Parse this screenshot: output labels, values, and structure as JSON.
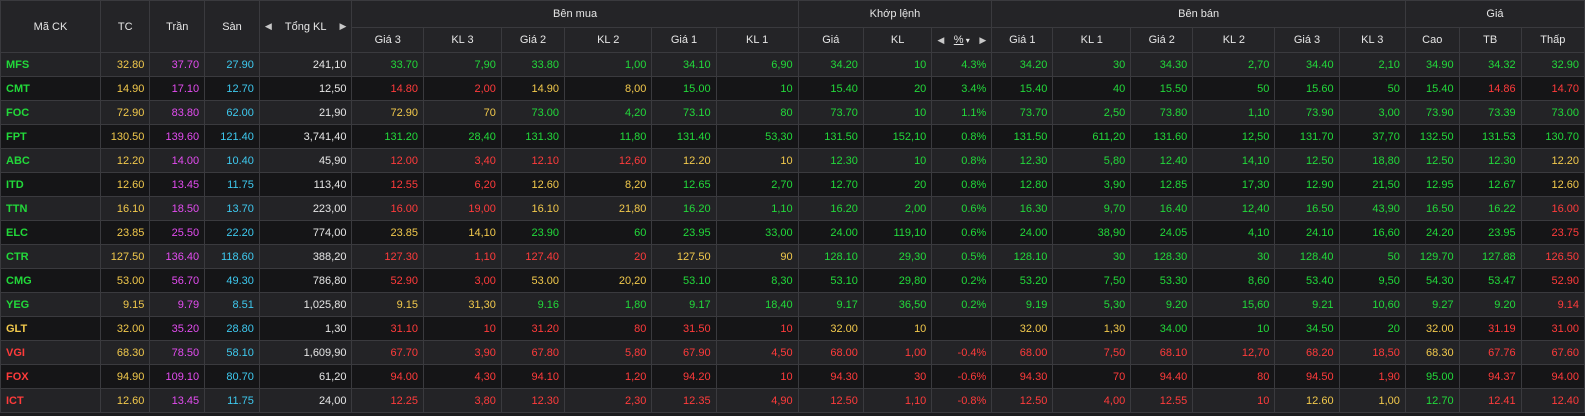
{
  "colors": {
    "up": "#22d93a",
    "down": "#ff3b3b",
    "ref": "#f2c94c",
    "ceil": "#e34cf0",
    "floor": "#3ec9ef",
    "white": "#e6e6e6"
  },
  "header": {
    "symbol": "Mã CK",
    "ref": "TC",
    "ceil": "Trần",
    "floor": "Sàn",
    "total_vol": "Tổng KL",
    "buy": "Bên mua",
    "match": "Khớp lệnh",
    "sell": "Bên bán",
    "price": "Giá",
    "buy_cols": [
      "Giá 3",
      "KL 3",
      "Giá 2",
      "KL 2",
      "Giá 1",
      "KL 1"
    ],
    "match_cols": [
      "Giá",
      "KL",
      "%"
    ],
    "sell_cols": [
      "Giá 1",
      "KL 1",
      "Giá 2",
      "KL 2",
      "Giá 3",
      "KL 3"
    ],
    "price_cols": [
      "Cao",
      "TB",
      "Thấp"
    ]
  },
  "rows": [
    {
      "symbol": "MFS",
      "sc": "up",
      "tc": "32.80",
      "tran": "37.70",
      "san": "27.90",
      "tkl": "241,10",
      "buy": [
        [
          "33.70",
          "up"
        ],
        [
          "7,90",
          "up"
        ],
        [
          "33.80",
          "up"
        ],
        [
          "1,00",
          "up"
        ],
        [
          "34.10",
          "up"
        ],
        [
          "6,90",
          "up"
        ]
      ],
      "match": [
        [
          "34.20",
          "up"
        ],
        [
          "10",
          "up"
        ],
        [
          "4.3%",
          "up"
        ]
      ],
      "sell": [
        [
          "34.20",
          "up"
        ],
        [
          "30",
          "up"
        ],
        [
          "34.30",
          "up"
        ],
        [
          "2,70",
          "up"
        ],
        [
          "34.40",
          "up"
        ],
        [
          "2,10",
          "up"
        ]
      ],
      "price": [
        [
          "34.90",
          "up"
        ],
        [
          "34.32",
          "up"
        ],
        [
          "32.90",
          "up"
        ]
      ]
    },
    {
      "symbol": "CMT",
      "sc": "up",
      "tc": "14.90",
      "tran": "17.10",
      "san": "12.70",
      "tkl": "12,50",
      "buy": [
        [
          "14.80",
          "down"
        ],
        [
          "2,00",
          "down"
        ],
        [
          "14.90",
          "ref"
        ],
        [
          "8,00",
          "ref"
        ],
        [
          "15.00",
          "up"
        ],
        [
          "10",
          "up"
        ]
      ],
      "match": [
        [
          "15.40",
          "up"
        ],
        [
          "20",
          "up"
        ],
        [
          "3.4%",
          "up"
        ]
      ],
      "sell": [
        [
          "15.40",
          "up"
        ],
        [
          "40",
          "up"
        ],
        [
          "15.50",
          "up"
        ],
        [
          "50",
          "up"
        ],
        [
          "15.60",
          "up"
        ],
        [
          "50",
          "up"
        ]
      ],
      "price": [
        [
          "15.40",
          "up"
        ],
        [
          "14.86",
          "down"
        ],
        [
          "14.70",
          "down"
        ]
      ]
    },
    {
      "symbol": "FOC",
      "sc": "up",
      "tc": "72.90",
      "tran": "83.80",
      "san": "62.00",
      "tkl": "21,90",
      "buy": [
        [
          "72.90",
          "ref"
        ],
        [
          "70",
          "ref"
        ],
        [
          "73.00",
          "up"
        ],
        [
          "4,20",
          "up"
        ],
        [
          "73.10",
          "up"
        ],
        [
          "80",
          "up"
        ]
      ],
      "match": [
        [
          "73.70",
          "up"
        ],
        [
          "10",
          "up"
        ],
        [
          "1.1%",
          "up"
        ]
      ],
      "sell": [
        [
          "73.70",
          "up"
        ],
        [
          "2,50",
          "up"
        ],
        [
          "73.80",
          "up"
        ],
        [
          "1,10",
          "up"
        ],
        [
          "73.90",
          "up"
        ],
        [
          "3,00",
          "up"
        ]
      ],
      "price": [
        [
          "73.90",
          "up"
        ],
        [
          "73.39",
          "up"
        ],
        [
          "73.00",
          "up"
        ]
      ]
    },
    {
      "symbol": "FPT",
      "sc": "up",
      "tc": "130.50",
      "tran": "139.60",
      "san": "121.40",
      "tkl": "3,741,40",
      "buy": [
        [
          "131.20",
          "up"
        ],
        [
          "28,40",
          "up"
        ],
        [
          "131.30",
          "up"
        ],
        [
          "11,80",
          "up"
        ],
        [
          "131.40",
          "up"
        ],
        [
          "53,30",
          "up"
        ]
      ],
      "match": [
        [
          "131.50",
          "up"
        ],
        [
          "152,10",
          "up"
        ],
        [
          "0.8%",
          "up"
        ]
      ],
      "sell": [
        [
          "131.50",
          "up"
        ],
        [
          "611,20",
          "up"
        ],
        [
          "131.60",
          "up"
        ],
        [
          "12,50",
          "up"
        ],
        [
          "131.70",
          "up"
        ],
        [
          "37,70",
          "up"
        ]
      ],
      "price": [
        [
          "132.50",
          "up"
        ],
        [
          "131.53",
          "up"
        ],
        [
          "130.70",
          "up"
        ]
      ]
    },
    {
      "symbol": "ABC",
      "sc": "up",
      "tc": "12.20",
      "tran": "14.00",
      "san": "10.40",
      "tkl": "45,90",
      "buy": [
        [
          "12.00",
          "down"
        ],
        [
          "3,40",
          "down"
        ],
        [
          "12.10",
          "down"
        ],
        [
          "12,60",
          "down"
        ],
        [
          "12.20",
          "ref"
        ],
        [
          "10",
          "ref"
        ]
      ],
      "match": [
        [
          "12.30",
          "up"
        ],
        [
          "10",
          "up"
        ],
        [
          "0.8%",
          "up"
        ]
      ],
      "sell": [
        [
          "12.30",
          "up"
        ],
        [
          "5,80",
          "up"
        ],
        [
          "12.40",
          "up"
        ],
        [
          "14,10",
          "up"
        ],
        [
          "12.50",
          "up"
        ],
        [
          "18,80",
          "up"
        ]
      ],
      "price": [
        [
          "12.50",
          "up"
        ],
        [
          "12.30",
          "up"
        ],
        [
          "12.20",
          "ref"
        ]
      ]
    },
    {
      "symbol": "ITD",
      "sc": "up",
      "tc": "12.60",
      "tran": "13.45",
      "san": "11.75",
      "tkl": "113,40",
      "buy": [
        [
          "12.55",
          "down"
        ],
        [
          "6,20",
          "down"
        ],
        [
          "12.60",
          "ref"
        ],
        [
          "8,20",
          "ref"
        ],
        [
          "12.65",
          "up"
        ],
        [
          "2,70",
          "up"
        ]
      ],
      "match": [
        [
          "12.70",
          "up"
        ],
        [
          "20",
          "up"
        ],
        [
          "0.8%",
          "up"
        ]
      ],
      "sell": [
        [
          "12.80",
          "up"
        ],
        [
          "3,90",
          "up"
        ],
        [
          "12.85",
          "up"
        ],
        [
          "17,30",
          "up"
        ],
        [
          "12.90",
          "up"
        ],
        [
          "21,50",
          "up"
        ]
      ],
      "price": [
        [
          "12.95",
          "up"
        ],
        [
          "12.67",
          "up"
        ],
        [
          "12.60",
          "ref"
        ]
      ]
    },
    {
      "symbol": "TTN",
      "sc": "up",
      "tc": "16.10",
      "tran": "18.50",
      "san": "13.70",
      "tkl": "223,00",
      "buy": [
        [
          "16.00",
          "down"
        ],
        [
          "19,00",
          "down"
        ],
        [
          "16.10",
          "ref"
        ],
        [
          "21,80",
          "ref"
        ],
        [
          "16.20",
          "up"
        ],
        [
          "1,10",
          "up"
        ]
      ],
      "match": [
        [
          "16.20",
          "up"
        ],
        [
          "2,00",
          "up"
        ],
        [
          "0.6%",
          "up"
        ]
      ],
      "sell": [
        [
          "16.30",
          "up"
        ],
        [
          "9,70",
          "up"
        ],
        [
          "16.40",
          "up"
        ],
        [
          "12,40",
          "up"
        ],
        [
          "16.50",
          "up"
        ],
        [
          "43,90",
          "up"
        ]
      ],
      "price": [
        [
          "16.50",
          "up"
        ],
        [
          "16.22",
          "up"
        ],
        [
          "16.00",
          "down"
        ]
      ]
    },
    {
      "symbol": "ELC",
      "sc": "up",
      "tc": "23.85",
      "tran": "25.50",
      "san": "22.20",
      "tkl": "774,00",
      "buy": [
        [
          "23.85",
          "ref"
        ],
        [
          "14,10",
          "ref"
        ],
        [
          "23.90",
          "up"
        ],
        [
          "60",
          "up"
        ],
        [
          "23.95",
          "up"
        ],
        [
          "33,00",
          "up"
        ]
      ],
      "match": [
        [
          "24.00",
          "up"
        ],
        [
          "119,10",
          "up"
        ],
        [
          "0.6%",
          "up"
        ]
      ],
      "sell": [
        [
          "24.00",
          "up"
        ],
        [
          "38,90",
          "up"
        ],
        [
          "24.05",
          "up"
        ],
        [
          "4,10",
          "up"
        ],
        [
          "24.10",
          "up"
        ],
        [
          "16,60",
          "up"
        ]
      ],
      "price": [
        [
          "24.20",
          "up"
        ],
        [
          "23.95",
          "up"
        ],
        [
          "23.75",
          "down"
        ]
      ]
    },
    {
      "symbol": "CTR",
      "sc": "up",
      "tc": "127.50",
      "tran": "136.40",
      "san": "118.60",
      "tkl": "388,20",
      "buy": [
        [
          "127.30",
          "down"
        ],
        [
          "1,10",
          "down"
        ],
        [
          "127.40",
          "down"
        ],
        [
          "20",
          "down"
        ],
        [
          "127.50",
          "ref"
        ],
        [
          "90",
          "ref"
        ]
      ],
      "match": [
        [
          "128.10",
          "up"
        ],
        [
          "29,30",
          "up"
        ],
        [
          "0.5%",
          "up"
        ]
      ],
      "sell": [
        [
          "128.10",
          "up"
        ],
        [
          "30",
          "up"
        ],
        [
          "128.30",
          "up"
        ],
        [
          "30",
          "up"
        ],
        [
          "128.40",
          "up"
        ],
        [
          "50",
          "up"
        ]
      ],
      "price": [
        [
          "129.70",
          "up"
        ],
        [
          "127.88",
          "up"
        ],
        [
          "126.50",
          "down"
        ]
      ]
    },
    {
      "symbol": "CMG",
      "sc": "up",
      "tc": "53.00",
      "tran": "56.70",
      "san": "49.30",
      "tkl": "786,80",
      "buy": [
        [
          "52.90",
          "down"
        ],
        [
          "3,00",
          "down"
        ],
        [
          "53.00",
          "ref"
        ],
        [
          "20,20",
          "ref"
        ],
        [
          "53.10",
          "up"
        ],
        [
          "8,30",
          "up"
        ]
      ],
      "match": [
        [
          "53.10",
          "up"
        ],
        [
          "29,80",
          "up"
        ],
        [
          "0.2%",
          "up"
        ]
      ],
      "sell": [
        [
          "53.20",
          "up"
        ],
        [
          "7,50",
          "up"
        ],
        [
          "53.30",
          "up"
        ],
        [
          "8,60",
          "up"
        ],
        [
          "53.40",
          "up"
        ],
        [
          "9,50",
          "up"
        ]
      ],
      "price": [
        [
          "54.30",
          "up"
        ],
        [
          "53.47",
          "up"
        ],
        [
          "52.90",
          "down"
        ]
      ]
    },
    {
      "symbol": "YEG",
      "sc": "up",
      "tc": "9.15",
      "tran": "9.79",
      "san": "8.51",
      "tkl": "1,025,80",
      "buy": [
        [
          "9.15",
          "ref"
        ],
        [
          "31,30",
          "ref"
        ],
        [
          "9.16",
          "up"
        ],
        [
          "1,80",
          "up"
        ],
        [
          "9.17",
          "up"
        ],
        [
          "18,40",
          "up"
        ]
      ],
      "match": [
        [
          "9.17",
          "up"
        ],
        [
          "36,50",
          "up"
        ],
        [
          "0.2%",
          "up"
        ]
      ],
      "sell": [
        [
          "9.19",
          "up"
        ],
        [
          "5,30",
          "up"
        ],
        [
          "9.20",
          "up"
        ],
        [
          "15,60",
          "up"
        ],
        [
          "9.21",
          "up"
        ],
        [
          "10,60",
          "up"
        ]
      ],
      "price": [
        [
          "9.27",
          "up"
        ],
        [
          "9.20",
          "up"
        ],
        [
          "9.14",
          "down"
        ]
      ]
    },
    {
      "symbol": "GLT",
      "sc": "ref",
      "tc": "32.00",
      "tran": "35.20",
      "san": "28.80",
      "tkl": "1,30",
      "buy": [
        [
          "31.10",
          "down"
        ],
        [
          "10",
          "down"
        ],
        [
          "31.20",
          "down"
        ],
        [
          "80",
          "down"
        ],
        [
          "31.50",
          "down"
        ],
        [
          "10",
          "down"
        ]
      ],
      "match": [
        [
          "32.00",
          "ref"
        ],
        [
          "10",
          "ref"
        ],
        [
          "",
          "ref"
        ]
      ],
      "sell": [
        [
          "32.00",
          "ref"
        ],
        [
          "1,30",
          "ref"
        ],
        [
          "34.00",
          "up"
        ],
        [
          "10",
          "up"
        ],
        [
          "34.50",
          "up"
        ],
        [
          "20",
          "up"
        ]
      ],
      "price": [
        [
          "32.00",
          "ref"
        ],
        [
          "31.19",
          "down"
        ],
        [
          "31.00",
          "down"
        ]
      ]
    },
    {
      "symbol": "VGI",
      "sc": "down",
      "tc": "68.30",
      "tran": "78.50",
      "san": "58.10",
      "tkl": "1,609,90",
      "buy": [
        [
          "67.70",
          "down"
        ],
        [
          "3,90",
          "down"
        ],
        [
          "67.80",
          "down"
        ],
        [
          "5,80",
          "down"
        ],
        [
          "67.90",
          "down"
        ],
        [
          "4,50",
          "down"
        ]
      ],
      "match": [
        [
          "68.00",
          "down"
        ],
        [
          "1,00",
          "down"
        ],
        [
          "-0.4%",
          "down"
        ]
      ],
      "sell": [
        [
          "68.00",
          "down"
        ],
        [
          "7,50",
          "down"
        ],
        [
          "68.10",
          "down"
        ],
        [
          "12,70",
          "down"
        ],
        [
          "68.20",
          "down"
        ],
        [
          "18,50",
          "down"
        ]
      ],
      "price": [
        [
          "68.30",
          "ref"
        ],
        [
          "67.76",
          "down"
        ],
        [
          "67.60",
          "down"
        ]
      ]
    },
    {
      "symbol": "FOX",
      "sc": "down",
      "tc": "94.90",
      "tran": "109.10",
      "san": "80.70",
      "tkl": "61,20",
      "buy": [
        [
          "94.00",
          "down"
        ],
        [
          "4,30",
          "down"
        ],
        [
          "94.10",
          "down"
        ],
        [
          "1,20",
          "down"
        ],
        [
          "94.20",
          "down"
        ],
        [
          "10",
          "down"
        ]
      ],
      "match": [
        [
          "94.30",
          "down"
        ],
        [
          "30",
          "down"
        ],
        [
          "-0.6%",
          "down"
        ]
      ],
      "sell": [
        [
          "94.30",
          "down"
        ],
        [
          "70",
          "down"
        ],
        [
          "94.40",
          "down"
        ],
        [
          "80",
          "down"
        ],
        [
          "94.50",
          "down"
        ],
        [
          "1,90",
          "down"
        ]
      ],
      "price": [
        [
          "95.00",
          "up"
        ],
        [
          "94.37",
          "down"
        ],
        [
          "94.00",
          "down"
        ]
      ]
    },
    {
      "symbol": "ICT",
      "sc": "down",
      "tc": "12.60",
      "tran": "13.45",
      "san": "11.75",
      "tkl": "24,00",
      "buy": [
        [
          "12.25",
          "down"
        ],
        [
          "3,80",
          "down"
        ],
        [
          "12.30",
          "down"
        ],
        [
          "2,30",
          "down"
        ],
        [
          "12.35",
          "down"
        ],
        [
          "4,90",
          "down"
        ]
      ],
      "match": [
        [
          "12.50",
          "down"
        ],
        [
          "1,10",
          "down"
        ],
        [
          "-0.8%",
          "down"
        ]
      ],
      "sell": [
        [
          "12.50",
          "down"
        ],
        [
          "4,00",
          "down"
        ],
        [
          "12.55",
          "down"
        ],
        [
          "10",
          "down"
        ],
        [
          "12.60",
          "ref"
        ],
        [
          "1,00",
          "ref"
        ]
      ],
      "price": [
        [
          "12.70",
          "up"
        ],
        [
          "12.41",
          "down"
        ],
        [
          "12.40",
          "down"
        ]
      ]
    }
  ]
}
